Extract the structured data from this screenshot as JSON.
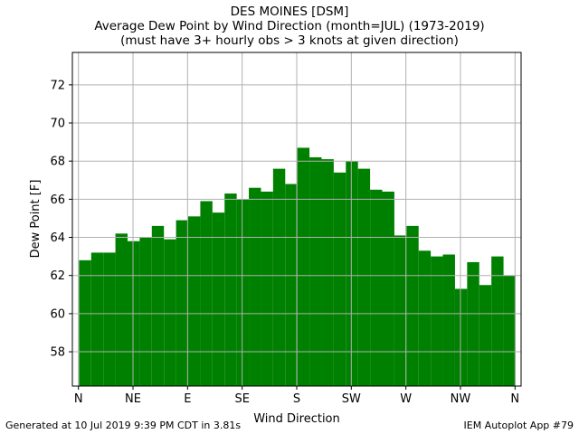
{
  "chart_data": {
    "type": "bar",
    "title": "DES MOINES [DSM]",
    "subtitle_lines": [
      "Average Dew Point by Wind Direction (month=JUL) (1973-2019)",
      "(must have 3+ hourly obs > 3 knots at given direction)"
    ],
    "xlabel": "Wind Direction",
    "ylabel": "Dew Point [F]",
    "x_unit": "degrees",
    "xlim": [
      -5,
      365
    ],
    "ylim": [
      56.2,
      73.7
    ],
    "x_ticks": [
      0,
      45,
      90,
      135,
      180,
      225,
      270,
      315,
      360
    ],
    "x_tick_labels": [
      "N",
      "NE",
      "E",
      "SE",
      "S",
      "SW",
      "W",
      "NW",
      "N"
    ],
    "y_ticks": [
      58,
      60,
      62,
      64,
      66,
      68,
      70,
      72
    ],
    "grid": true,
    "bar_color": "#008000",
    "bar_width_deg": 10,
    "directions": [
      0,
      10,
      20,
      30,
      40,
      50,
      60,
      70,
      80,
      90,
      100,
      110,
      120,
      130,
      140,
      150,
      160,
      170,
      180,
      190,
      200,
      210,
      220,
      230,
      240,
      250,
      260,
      270,
      280,
      290,
      300,
      310,
      320,
      330,
      340,
      350
    ],
    "values": [
      62.8,
      63.2,
      63.2,
      64.2,
      63.8,
      64.0,
      64.6,
      63.9,
      64.9,
      65.1,
      65.9,
      65.3,
      66.3,
      66.0,
      66.6,
      66.4,
      67.6,
      66.8,
      68.7,
      68.2,
      68.1,
      67.4,
      68.0,
      67.6,
      66.5,
      66.4,
      64.1,
      64.6,
      63.3,
      63.0,
      63.1,
      61.3,
      62.7,
      61.5,
      63.0,
      62.0
    ]
  },
  "footer": {
    "generated": "Generated at 10 Jul 2019 9:39 PM CDT in 3.81s",
    "app": "IEM Autoplot App #79"
  }
}
